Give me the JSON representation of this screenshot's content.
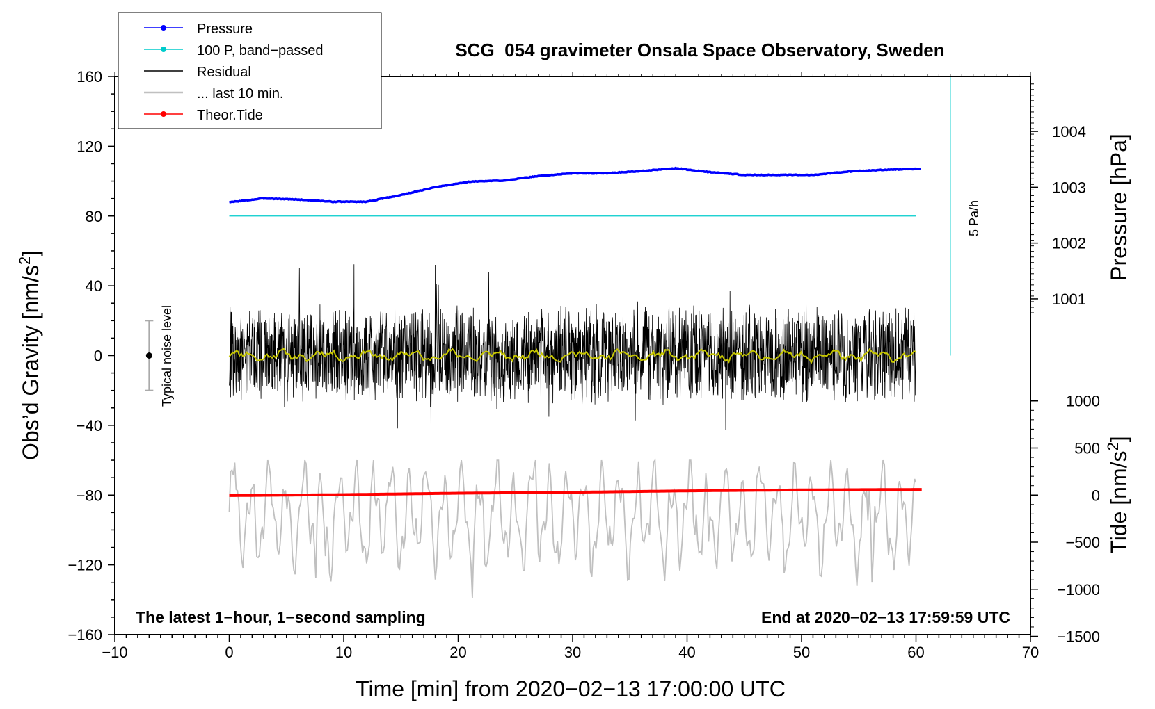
{
  "chart_data": {
    "type": "line",
    "title": "SCG_054 gravimeter Onsala Space Observatory, Sweden",
    "xlabel": "Time [min] from 2020−02−13 17:00:00 UTC",
    "ylabel": "Obs’d Gravity [nm/s",
    "ylabel_sup": "2",
    "ylabel_close": "]",
    "pressure_axis_label": "Pressure [hPa]",
    "tide_axis_label": "Tide [nm/s",
    "tide_axis_sup": "2",
    "tide_axis_close": "]",
    "xlim": [
      -10,
      70
    ],
    "ylim": [
      -160,
      160
    ],
    "x_ticks": [
      "−10",
      "0",
      "10",
      "20",
      "30",
      "40",
      "50",
      "60",
      "70"
    ],
    "x_tick_values": [
      -10,
      0,
      10,
      20,
      30,
      40,
      50,
      60,
      70
    ],
    "y_ticks": [
      "160",
      "120",
      "80",
      "40",
      "0",
      "−40",
      "−80",
      "−120",
      "−160"
    ],
    "y_tick_values": [
      160,
      120,
      80,
      40,
      0,
      -40,
      -80,
      -120,
      -160
    ],
    "pressure_ticks": [
      "1004",
      "1003",
      "1002",
      "1001"
    ],
    "pressure_tick_values": [
      1004,
      1003,
      1002,
      1001
    ],
    "pressure_map": {
      "hpa_ref": 1003,
      "gravity_ref": 96.5,
      "gravity_per_hpa": 32
    },
    "tide_ticks": [
      "1000",
      "500",
      "0",
      "−500",
      "−1000",
      "−1500"
    ],
    "tide_tick_values": [
      1000,
      500,
      0,
      -500,
      -1000,
      -1500
    ],
    "tide_map": {
      "tide_ref": 0,
      "gravity_ref": -80,
      "gravity_per_unit": 0.054
    },
    "series": [
      {
        "name": "Pressure",
        "color": "#0000ff",
        "unit": "hPa",
        "x": [
          0,
          3,
          6,
          9,
          12,
          15,
          18,
          21,
          24,
          27,
          30,
          33,
          36,
          39,
          42,
          45,
          48,
          51,
          54,
          57,
          60
        ],
        "values": [
          1002.73,
          1002.8,
          1002.78,
          1002.74,
          1002.74,
          1002.86,
          1003.0,
          1003.1,
          1003.12,
          1003.2,
          1003.25,
          1003.25,
          1003.29,
          1003.34,
          1003.27,
          1003.22,
          1003.22,
          1003.22,
          1003.28,
          1003.31,
          1003.33
        ]
      },
      {
        "name": "100 P, band−passed",
        "color": "#00cccc",
        "x": [
          0,
          60
        ],
        "values": [
          80,
          80
        ]
      },
      {
        "name": "Residual",
        "color": "#000000",
        "amplitude_range": [
          -55,
          73
        ]
      },
      {
        "name": "... last 10 min.",
        "color": "#c0c0c0"
      },
      {
        "name": "Theor.Tide",
        "color": "#ff0000",
        "unit": "nm/s2",
        "x": [
          0,
          10,
          20,
          30,
          40,
          50,
          60
        ],
        "values": [
          -5,
          5,
          20,
          30,
          45,
          55,
          60
        ]
      }
    ],
    "legend": [
      {
        "label": "Pressure",
        "color": "#0000ff",
        "marker": true
      },
      {
        "label": "100 P, band−passed",
        "color": "#00cccc",
        "marker": true
      },
      {
        "label": "Residual",
        "color": "#000000",
        "marker": false
      },
      {
        "label": "... last 10 min.",
        "color": "#c0c0c0",
        "marker": false
      },
      {
        "label": "Theor.Tide",
        "color": "#ff0000",
        "marker": true
      }
    ],
    "noise_label": "Typical noise level",
    "noise_range": [
      -20,
      20
    ],
    "rate_label": "5 Pa/h",
    "footer_left": "The latest 1−hour, 1−second sampling",
    "footer_right": "End at 2020−02−13 17:59:59 UTC"
  }
}
